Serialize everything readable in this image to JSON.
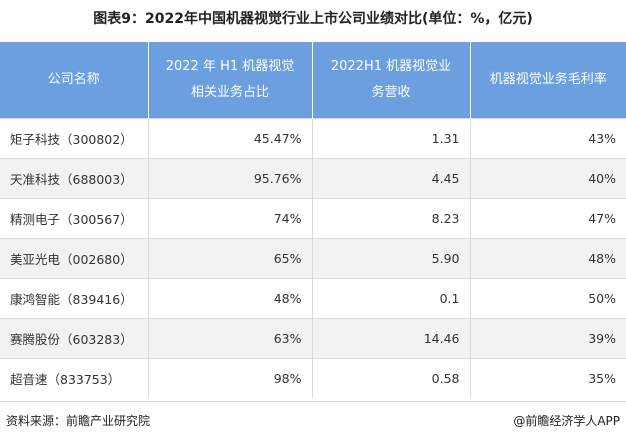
{
  "header": {
    "title": "图表9：2022年中国机器视觉行业上市公司业绩对比(单位：%，亿元)"
  },
  "table": {
    "columns": [
      "公司名称",
      "2022 年 H1 机器视觉相关业务占比",
      "2022H1 机器视觉业务营收",
      "机器视觉业务毛利率"
    ],
    "rows": [
      [
        "矩子科技（300802）",
        "45.47%",
        "1.31",
        "43%"
      ],
      [
        "天准科技（688003）",
        "95.76%",
        "4.45",
        "40%"
      ],
      [
        "精测电子（300567）",
        "74%",
        "8.23",
        "47%"
      ],
      [
        "美亚光电（002680）",
        "65%",
        "5.90",
        "48%"
      ],
      [
        "康鸿智能（839416）",
        "48%",
        "0.1",
        "50%"
      ],
      [
        "赛腾股份（603283）",
        "63%",
        "14.46",
        "39%"
      ],
      [
        "超音速（833753）",
        "98%",
        "0.58",
        "35%"
      ]
    ]
  },
  "footer": {
    "source": "资料来源：前瞻产业研究院",
    "brand": "@前瞻经济学人APP"
  }
}
